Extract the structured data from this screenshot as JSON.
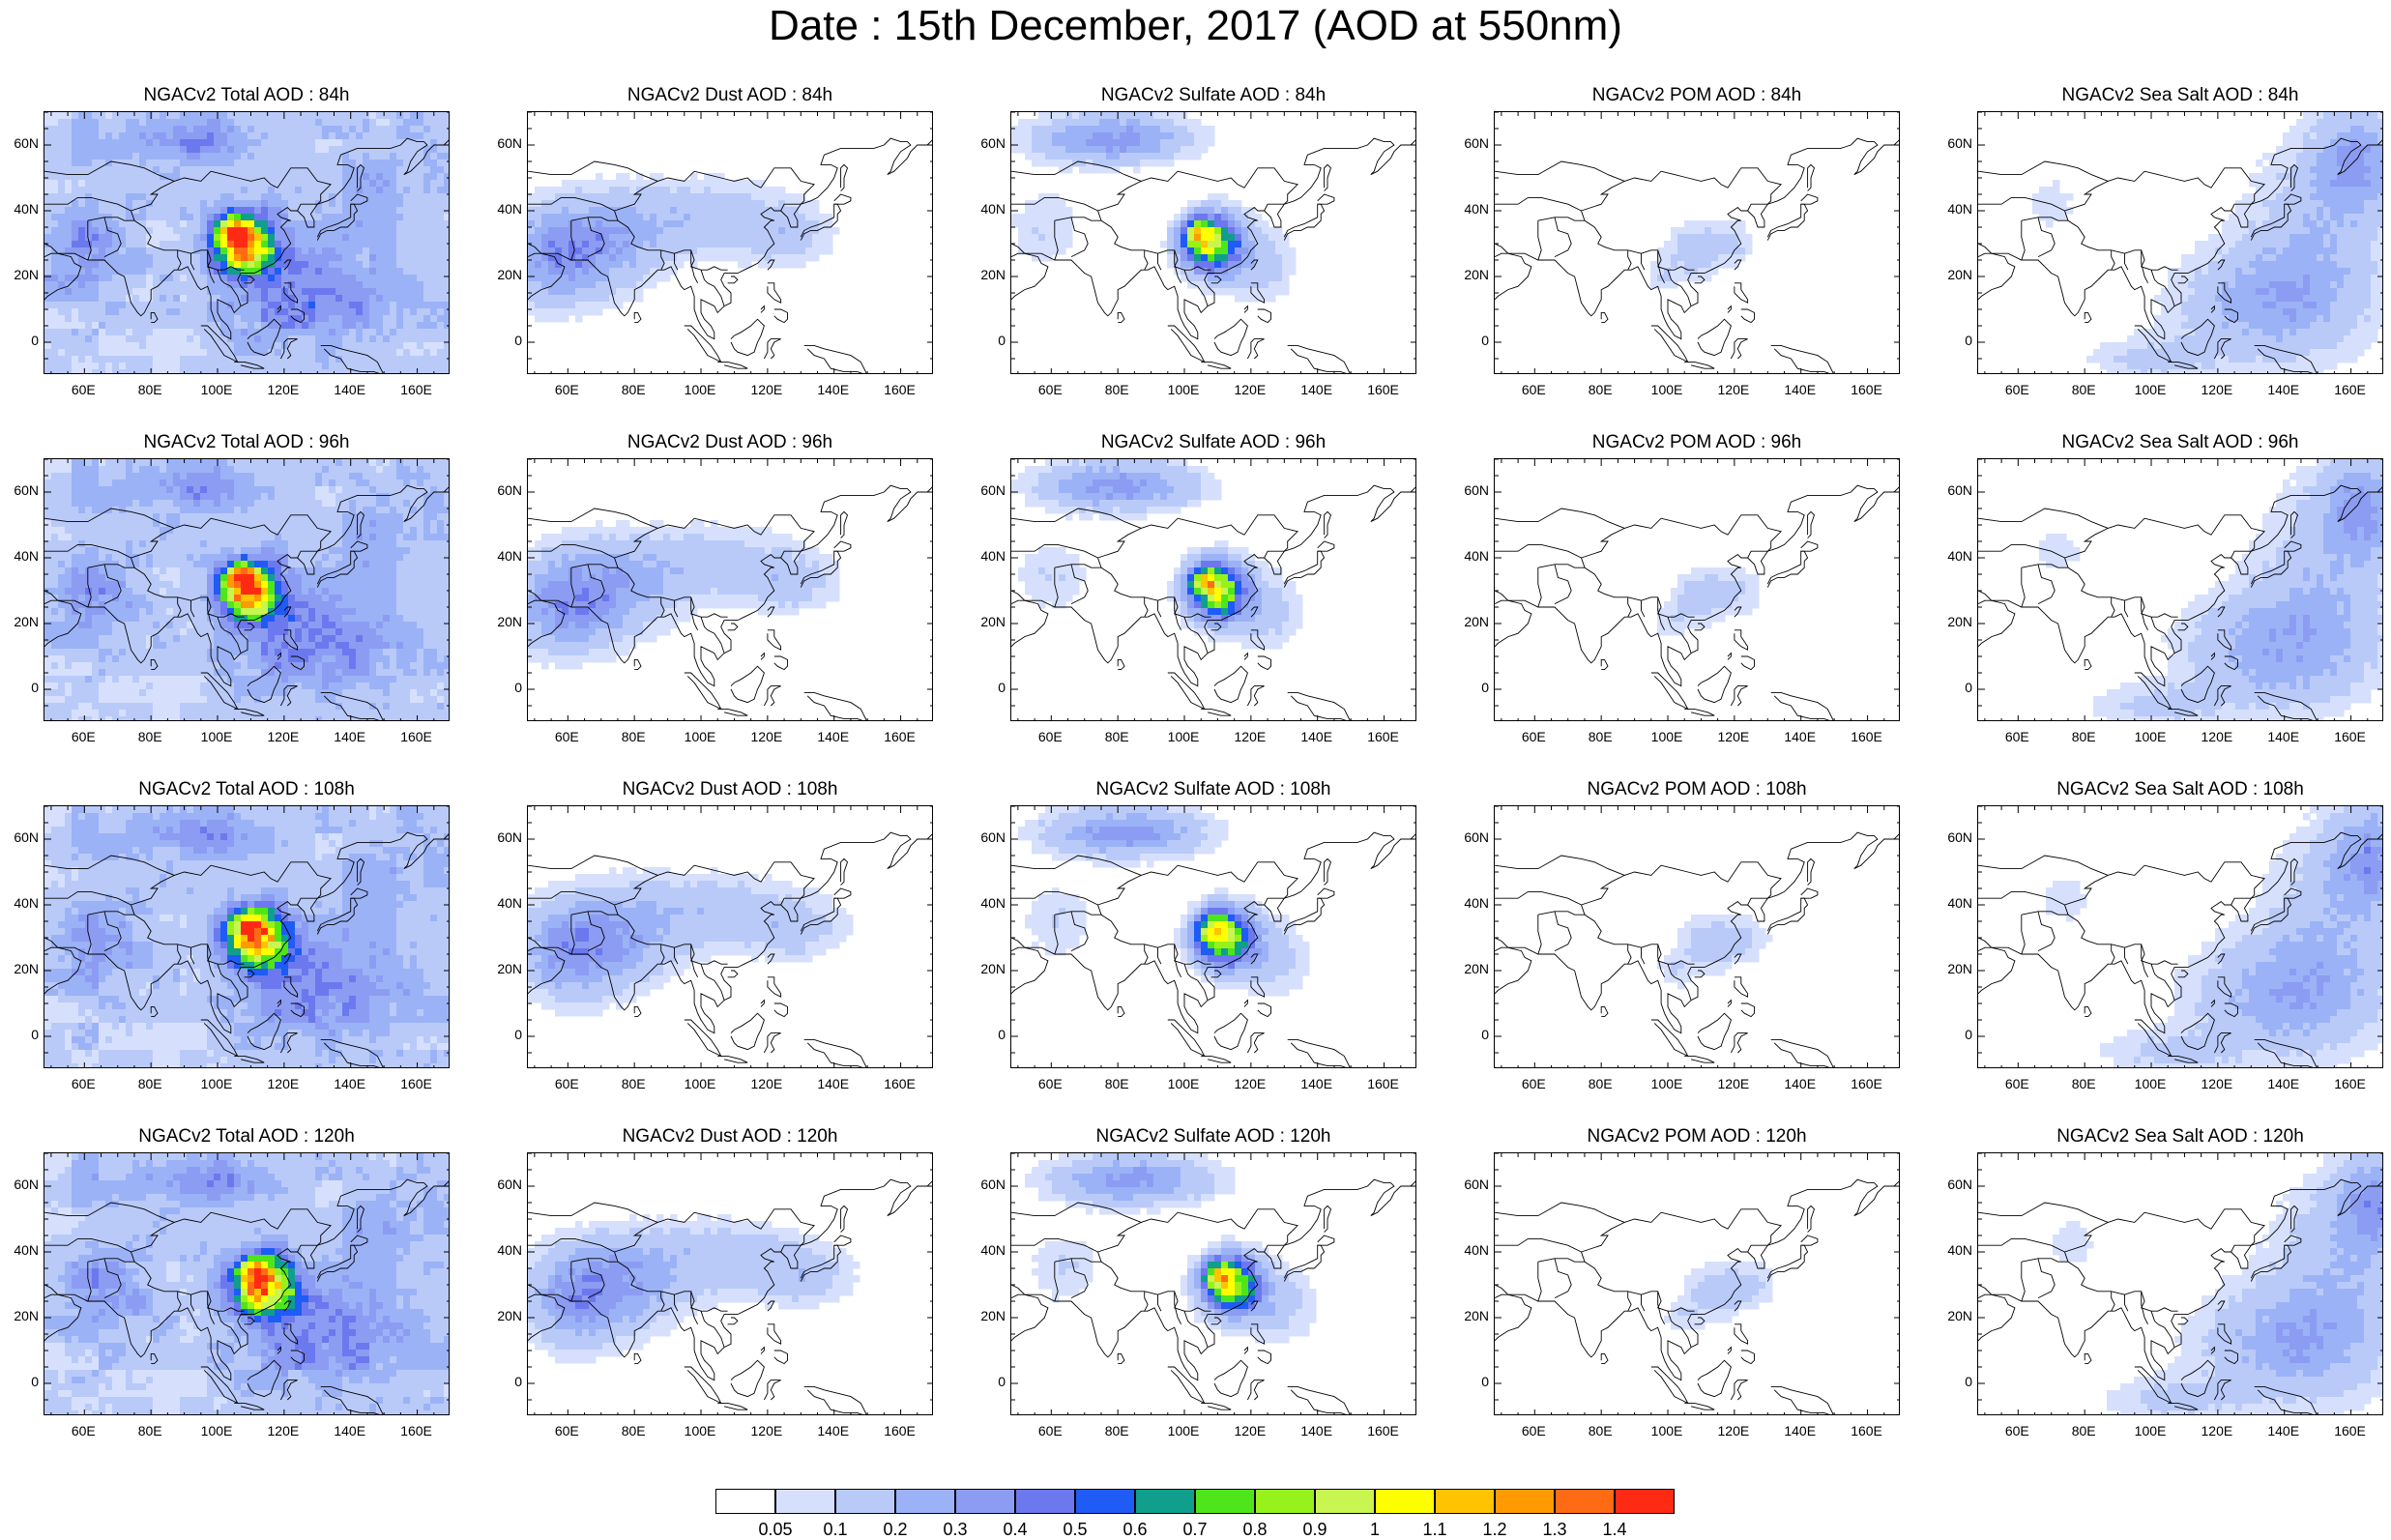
{
  "title": "Date : 15th December, 2017 (AOD at 550nm)",
  "axes": {
    "lon_labels": [
      "60E",
      "80E",
      "100E",
      "120E",
      "140E",
      "160E"
    ],
    "lat_labels": [
      "60N",
      "40N",
      "20N",
      "0"
    ]
  },
  "panels": [
    [
      {
        "title": "NGACv2 Total AOD : 84h",
        "species": "total"
      },
      {
        "title": "NGACv2 Dust AOD : 84h",
        "species": "dust"
      },
      {
        "title": "NGACv2 Sulfate AOD : 84h",
        "species": "sulfate"
      },
      {
        "title": "NGACv2 POM AOD : 84h",
        "species": "pom"
      },
      {
        "title": "NGACv2 Sea Salt AOD : 84h",
        "species": "seasalt"
      }
    ],
    [
      {
        "title": "NGACv2 Total AOD : 96h",
        "species": "total"
      },
      {
        "title": "NGACv2 Dust AOD : 96h",
        "species": "dust"
      },
      {
        "title": "NGACv2 Sulfate AOD : 96h",
        "species": "sulfate"
      },
      {
        "title": "NGACv2 POM AOD : 96h",
        "species": "pom"
      },
      {
        "title": "NGACv2 Sea Salt AOD : 96h",
        "species": "seasalt"
      }
    ],
    [
      {
        "title": "NGACv2 Total AOD : 108h",
        "species": "total"
      },
      {
        "title": "NGACv2 Dust AOD : 108h",
        "species": "dust"
      },
      {
        "title": "NGACv2 Sulfate AOD : 108h",
        "species": "sulfate"
      },
      {
        "title": "NGACv2 POM AOD : 108h",
        "species": "pom"
      },
      {
        "title": "NGACv2 Sea Salt AOD : 108h",
        "species": "seasalt"
      }
    ],
    [
      {
        "title": "NGACv2 Total AOD : 120h",
        "species": "total"
      },
      {
        "title": "NGACv2 Dust AOD : 120h",
        "species": "dust"
      },
      {
        "title": "NGACv2 Sulfate AOD : 120h",
        "species": "sulfate"
      },
      {
        "title": "NGACv2 POM AOD : 120h",
        "species": "pom"
      },
      {
        "title": "NGACv2 Sea Salt  AOD : 120h",
        "species": "seasalt"
      }
    ]
  ],
  "colorbar": {
    "labels": [
      "0.05",
      "0.1",
      "0.2",
      "0.3",
      "0.4",
      "0.5",
      "0.6",
      "0.7",
      "0.8",
      "0.9",
      "1",
      "1.1",
      "1.2",
      "1.3",
      "1.4"
    ],
    "colors": [
      "#ffffff",
      "#d6e0fd",
      "#b9caf9",
      "#9cb2f6",
      "#8c9cf2",
      "#6c78ee",
      "#1e5cf5",
      "#109f8c",
      "#4ee61a",
      "#96f21a",
      "#c8f550",
      "#ffff00",
      "#ffc300",
      "#ff9a00",
      "#ff6a14",
      "#ff2a14"
    ]
  }
}
